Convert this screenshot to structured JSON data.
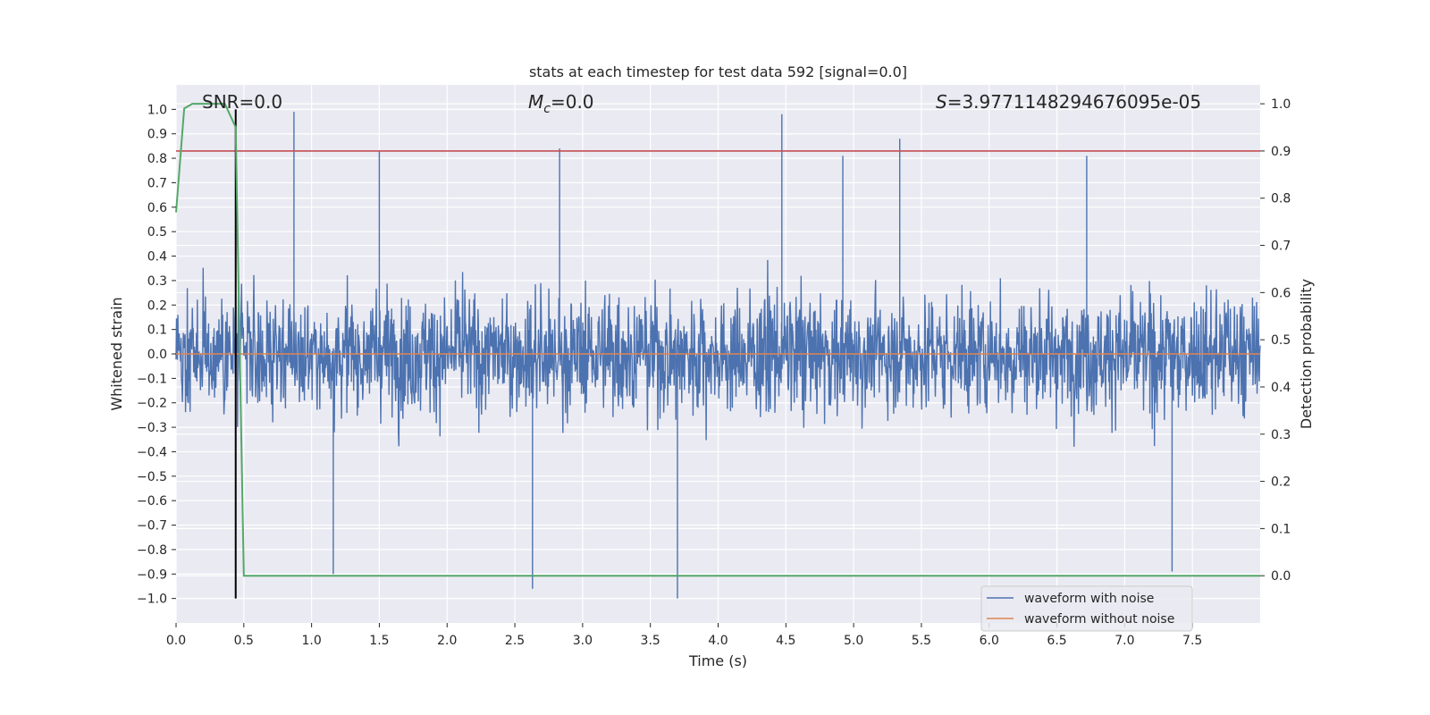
{
  "chart_data": {
    "type": "line",
    "title": "stats at each timestep for test data 592 [signal=0.0]",
    "xlabel": "Time (s)",
    "ylabel_left": "Whitened strain",
    "ylabel_right": "Detection probability",
    "xlim": [
      0.0,
      8.0
    ],
    "ylim_left": [
      -1.1,
      1.1
    ],
    "ylim_right": [
      -0.1,
      1.04
    ],
    "x_ticks": [
      0.0,
      0.5,
      1.0,
      1.5,
      2.0,
      2.5,
      3.0,
      3.5,
      4.0,
      4.5,
      5.0,
      5.5,
      6.0,
      6.5,
      7.0,
      7.5
    ],
    "x_tick_labels": [
      "0.0",
      "0.5",
      "1.0",
      "1.5",
      "2.0",
      "2.5",
      "3.0",
      "3.5",
      "4.0",
      "4.5",
      "5.0",
      "5.5",
      "6.0",
      "6.5",
      "7.0",
      "7.5"
    ],
    "y_left_ticks": [
      1.0,
      0.9,
      0.8,
      0.7,
      0.6,
      0.5,
      0.4,
      0.3,
      0.2,
      0.1,
      0.0,
      -0.1,
      -0.2,
      -0.3,
      -0.4,
      -0.5,
      -0.6,
      -0.7,
      -0.8,
      -0.9,
      -1.0
    ],
    "y_left_tick_labels": [
      "1.0",
      "0.9",
      "0.8",
      "0.7",
      "0.6",
      "0.5",
      "0.4",
      "0.3",
      "0.2",
      "0.1",
      "0.0",
      "−0.1",
      "−0.2",
      "−0.3",
      "−0.4",
      "−0.5",
      "−0.6",
      "−0.7",
      "−0.8",
      "−0.9",
      "−1.0"
    ],
    "y_right_ticks": [
      1.0,
      0.9,
      0.8,
      0.7,
      0.6,
      0.5,
      0.4,
      0.3,
      0.2,
      0.1,
      0.0
    ],
    "y_right_tick_labels": [
      "1.0",
      "0.9",
      "0.8",
      "0.7",
      "0.6",
      "0.5",
      "0.4",
      "0.3",
      "0.2",
      "0.1",
      "0.0"
    ],
    "grid": true,
    "annotations": [
      {
        "id": "snr",
        "text": "SNR=0.0",
        "x": 0.5
      },
      {
        "id": "mc",
        "text": "M_c=0.0",
        "x": 2.9
      },
      {
        "id": "s",
        "text": "S=3.9771148294676095e-05",
        "x": 6.6
      }
    ],
    "mc_annotation": {
      "symbol": "M",
      "subscript": "c",
      "value": "=0.0"
    },
    "s_annotation": {
      "symbol": "S",
      "value": "=3.9771148294676095e-05"
    },
    "snr_annotation": "SNR=0.0",
    "threshold_line": {
      "axis": "right",
      "value": 0.9,
      "color": "#c44e52"
    },
    "marker_line": {
      "x": 0.44,
      "y_range": [
        -1.0,
        1.0
      ],
      "color": "#000000"
    },
    "series": [
      {
        "name": "waveform with noise",
        "axis": "left",
        "color": "#4c72b0",
        "description_type": "noise",
        "typical_amplitude": 0.4,
        "peak_events": [
          {
            "x": 0.87,
            "y": 0.99
          },
          {
            "x": 1.5,
            "y": 0.83
          },
          {
            "x": 2.83,
            "y": 0.84
          },
          {
            "x": 4.47,
            "y": 0.98
          },
          {
            "x": 4.92,
            "y": 0.81
          },
          {
            "x": 5.34,
            "y": 0.88
          },
          {
            "x": 6.72,
            "y": 0.81
          },
          {
            "x": 3.7,
            "y": -1.0
          },
          {
            "x": 2.63,
            "y": -0.96
          },
          {
            "x": 1.16,
            "y": -0.9
          },
          {
            "x": 7.35,
            "y": -0.89
          }
        ]
      },
      {
        "name": "waveform without noise",
        "axis": "left",
        "color": "#dd8452",
        "x": [
          0.0,
          8.0
        ],
        "values": [
          0.0,
          0.0
        ]
      },
      {
        "name": "detection probability",
        "axis": "right",
        "color": "#55a868",
        "x": [
          0.0,
          0.06,
          0.12,
          0.2,
          0.36,
          0.44,
          0.5,
          8.0
        ],
        "values": [
          0.77,
          0.99,
          1.0,
          1.0,
          1.0,
          0.95,
          0.0,
          0.0
        ]
      }
    ],
    "legend": {
      "position": "lower-right",
      "entries": [
        {
          "label": "waveform with noise",
          "color": "#4c72b0"
        },
        {
          "label": "waveform without noise",
          "color": "#dd8452"
        }
      ]
    },
    "colors": {
      "plot_bg": "#eaeaf2",
      "grid": "#ffffff",
      "text": "#262626"
    }
  }
}
